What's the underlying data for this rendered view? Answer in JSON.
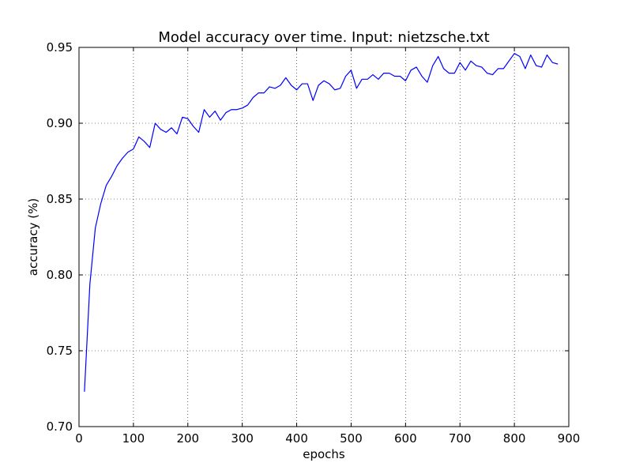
{
  "chart_data": {
    "type": "line",
    "title": "Model accuracy over time. Input: nietzsche.txt",
    "xlabel": "epochs",
    "ylabel": "accuracy (%)",
    "xlim": [
      0,
      900
    ],
    "ylim": [
      0.7,
      0.95
    ],
    "xticks": [
      0,
      100,
      200,
      300,
      400,
      500,
      600,
      700,
      800,
      900
    ],
    "yticks": [
      0.7,
      0.75,
      0.8,
      0.85,
      0.9,
      0.95
    ],
    "xtick_labels": [
      "0",
      "100",
      "200",
      "300",
      "400",
      "500",
      "600",
      "700",
      "800",
      "900"
    ],
    "ytick_labels": [
      "0.70",
      "0.75",
      "0.80",
      "0.85",
      "0.90",
      "0.95"
    ],
    "grid": true,
    "line_color": "#0000ff",
    "series": [
      {
        "x": [
          10,
          20,
          30,
          40,
          50,
          60,
          70,
          80,
          90,
          100,
          110,
          120,
          130,
          140,
          150,
          160,
          170,
          180,
          190,
          200,
          210,
          220,
          230,
          240,
          250,
          260,
          270,
          280,
          290,
          300,
          310,
          320,
          330,
          340,
          350,
          360,
          370,
          380,
          390,
          400,
          410,
          420,
          430,
          440,
          450,
          460,
          470,
          480,
          490,
          500,
          510,
          520,
          530,
          540,
          550,
          560,
          570,
          580,
          590,
          600,
          610,
          620,
          630,
          640,
          650,
          660,
          670,
          680,
          690,
          700,
          710,
          720,
          730,
          740,
          750,
          760,
          770,
          780,
          790,
          800,
          810,
          820,
          830,
          840,
          850,
          860,
          870,
          880
        ],
        "y": [
          0.723,
          0.794,
          0.831,
          0.847,
          0.859,
          0.865,
          0.872,
          0.877,
          0.881,
          0.883,
          0.891,
          0.888,
          0.884,
          0.9,
          0.896,
          0.894,
          0.897,
          0.893,
          0.904,
          0.903,
          0.898,
          0.894,
          0.909,
          0.904,
          0.908,
          0.902,
          0.907,
          0.909,
          0.909,
          0.91,
          0.912,
          0.917,
          0.92,
          0.92,
          0.924,
          0.923,
          0.925,
          0.93,
          0.925,
          0.922,
          0.926,
          0.926,
          0.915,
          0.925,
          0.928,
          0.926,
          0.922,
          0.923,
          0.931,
          0.935,
          0.923,
          0.929,
          0.929,
          0.932,
          0.929,
          0.933,
          0.933,
          0.931,
          0.931,
          0.928,
          0.935,
          0.937,
          0.931,
          0.927,
          0.938,
          0.944,
          0.936,
          0.933,
          0.933,
          0.94,
          0.935,
          0.941,
          0.938,
          0.937,
          0.933,
          0.932,
          0.936,
          0.936,
          0.941,
          0.946,
          0.944,
          0.936,
          0.945,
          0.938,
          0.937,
          0.945,
          0.94,
          0.939
        ]
      }
    ]
  }
}
